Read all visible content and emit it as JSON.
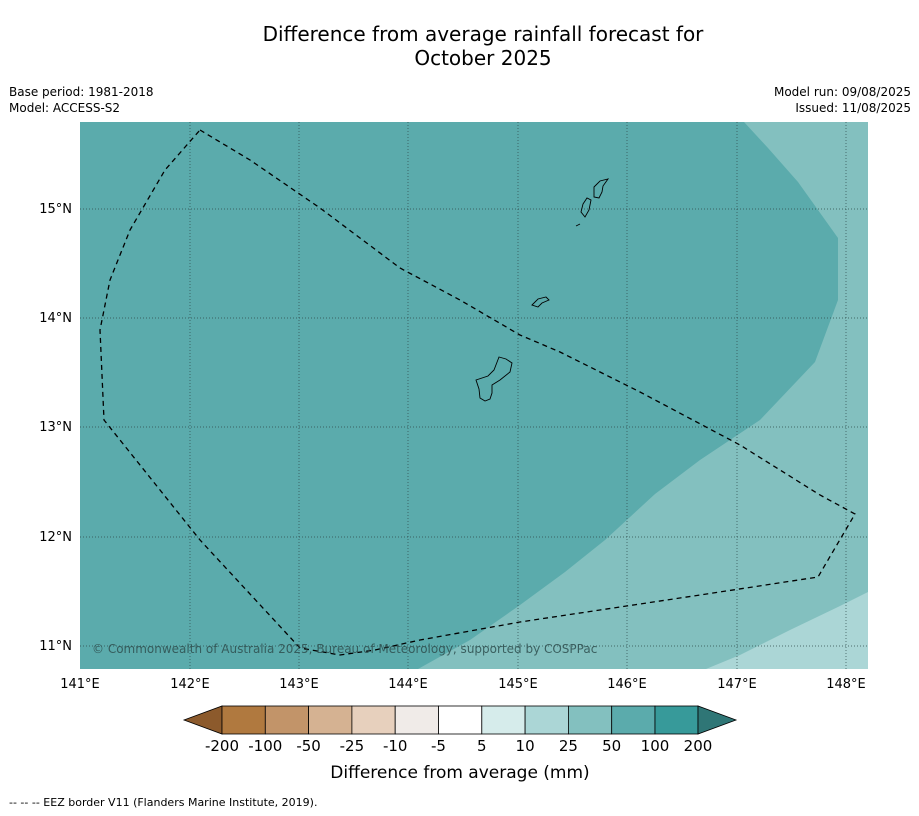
{
  "title_line1": "Difference from average rainfall forecast for",
  "title_line2": "October 2025",
  "base_period": "Base period: 1981-2018",
  "model": "Model: ACCESS-S2",
  "model_run": "Model run: 09/08/2025",
  "issued": "Issued: 11/08/2025",
  "copyright": "© Commonwealth of Australia 2025, Bureau of Meteorology, supported by COSPPac",
  "lat_labels": [
    "15°N",
    "14°N",
    "13°N",
    "12°N",
    "11°N"
  ],
  "lon_labels": [
    "141°E",
    "142°E",
    "143°E",
    "144°E",
    "145°E",
    "146°E",
    "147°E",
    "148°E"
  ],
  "colorbar": {
    "title": "Difference from average (mm)",
    "tick_labels": [
      "-200",
      "-100",
      "-50",
      "-25",
      "-10",
      "-5",
      "5",
      "10",
      "25",
      "50",
      "100",
      "200"
    ],
    "colors": {
      "below_-200": "#8c5a2c",
      "-200_-100": "#b0793f",
      "-100_-50": "#c29469",
      "-50_-25": "#d5b292",
      "-25_-10": "#e7d0bd",
      "-10_-5": "#f0ebe8",
      "-5_5": "#ffffff",
      "5_10": "#d6eceb",
      "10_25": "#abd6d6",
      "25_50": "#83c0bf",
      "50_100": "#5babac",
      "100_200": "#379a9a",
      "above_200": "#2f7676"
    }
  },
  "map_fill": {
    "dominant": "#5babac",
    "middle": "#83c0bf",
    "corner": "#abd6d6"
  },
  "legend_note": "--  --  -- EEZ border V11 (Flanders Marine Institute, 2019)."
}
